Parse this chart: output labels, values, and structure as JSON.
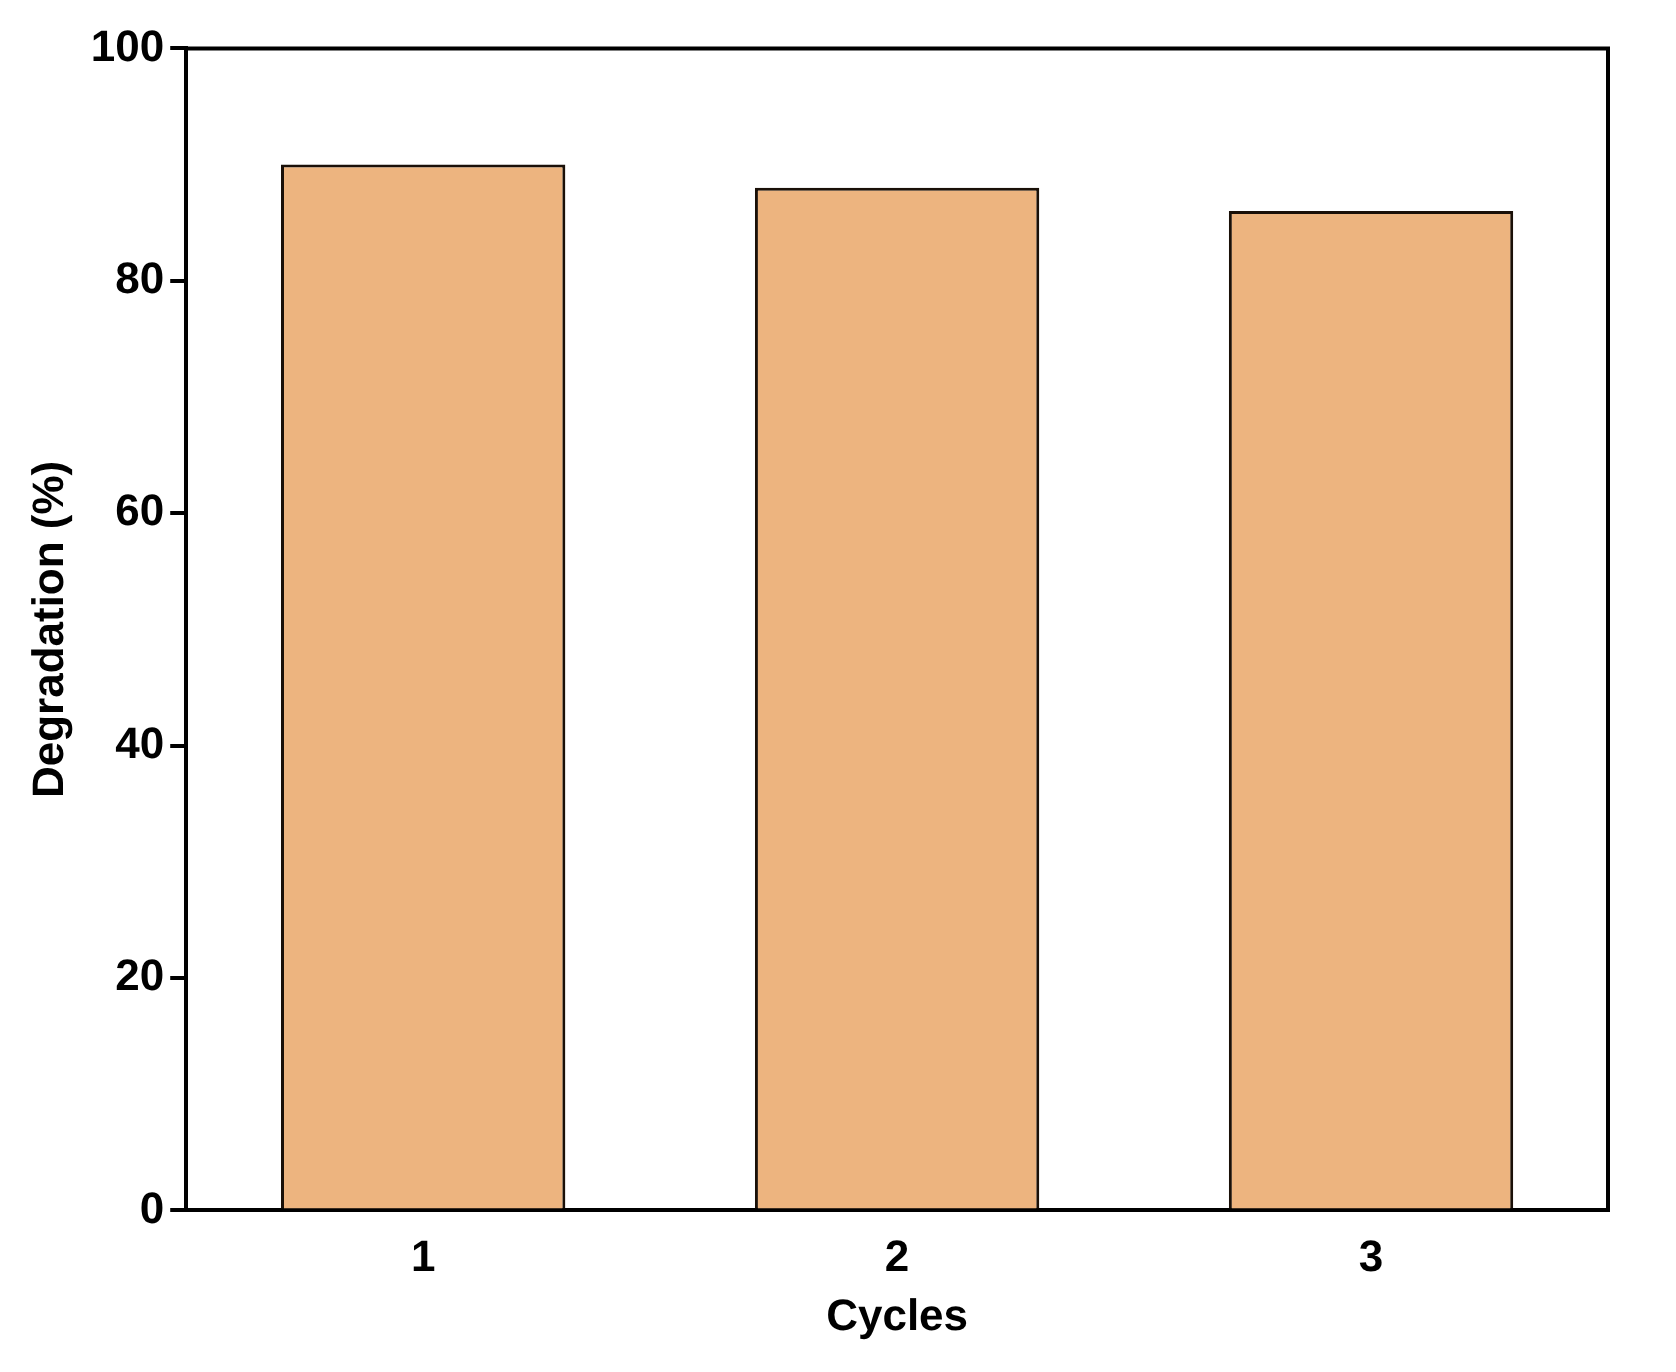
{
  "chart_data": {
    "type": "bar",
    "xlabel": "Cycles",
    "ylabel": "Degradation (%)",
    "categories": [
      "1",
      "2",
      "3"
    ],
    "values": [
      90,
      88,
      86
    ],
    "color": "#edb47f",
    "ylim": [
      0,
      100
    ],
    "yticks": [
      0,
      20,
      40,
      60,
      80,
      100
    ],
    "grid": false,
    "legend": false
  }
}
